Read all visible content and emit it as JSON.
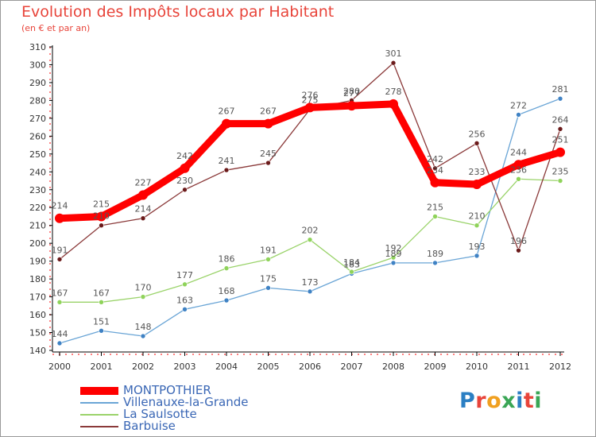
{
  "header": {
    "title": "Evolution des Impôts locaux par Habitant",
    "subtitle": "(en € et par an)"
  },
  "brand": {
    "text": "Proxiti",
    "letter_colors": [
      "#2b7fc3",
      "#e8443a",
      "#f0a020",
      "#3aa655",
      "#2b7fc3",
      "#e8443a",
      "#3aa655"
    ]
  },
  "chart_data": {
    "type": "line",
    "title": "Evolution des Impôts locaux par Habitant",
    "subtitle": "(en € et par an)",
    "xlabel": "",
    "ylabel": "",
    "ylim": [
      140,
      310
    ],
    "yticks": [
      140,
      150,
      160,
      170,
      180,
      190,
      200,
      210,
      220,
      230,
      240,
      250,
      260,
      270,
      280,
      290,
      300,
      310
    ],
    "grid": false,
    "legend_position": "bottom-left",
    "x": [
      "2000",
      "2001",
      "2002",
      "2003",
      "2004",
      "2005",
      "2006",
      "2007",
      "2008",
      "2009",
      "2010",
      "2011",
      "2012"
    ],
    "series": [
      {
        "name": "MONTPOTHIER",
        "color": "#ff0000",
        "bold": true,
        "label_color": "#555555",
        "values": [
          214,
          215,
          227,
          242,
          267,
          267,
          276,
          277,
          278,
          234,
          233,
          244,
          251
        ],
        "labels": [
          "214",
          "215",
          "227",
          "242",
          "267",
          "267",
          "276",
          "277",
          "278",
          "234",
          "233",
          "244",
          "251"
        ]
      },
      {
        "name": "Villenauxe-la-Grande",
        "color": "#6aa5d6",
        "marker": "#3f82c4",
        "label_color": "#555555",
        "values": [
          144,
          151,
          148,
          163,
          168,
          175,
          173,
          183,
          189,
          189,
          193,
          272,
          281
        ],
        "labels": [
          "144",
          "151",
          "148",
          "163",
          "168",
          "175",
          "173",
          "183",
          "189",
          "189",
          "193",
          "272",
          "281"
        ]
      },
      {
        "name": "La Saulsotte",
        "color": "#9ad36a",
        "marker": "#8fd35a",
        "label_color": "#555555",
        "values": [
          167,
          167,
          170,
          177,
          186,
          191,
          202,
          184,
          192,
          215,
          210,
          236,
          235
        ],
        "labels": [
          "167",
          "167",
          "170",
          "177",
          "186",
          "191",
          "202",
          "184",
          "192",
          "215",
          "210",
          "236",
          "235"
        ]
      },
      {
        "name": "Barbuise",
        "color": "#8b3a3a",
        "marker": "#6b1a1a",
        "label_color": "#555555",
        "values": [
          191,
          210,
          214,
          230,
          241,
          245,
          275,
          280,
          301,
          242,
          256,
          196,
          264
        ],
        "labels": [
          "191",
          "210",
          "214",
          "230",
          "241",
          "245",
          "275",
          "280",
          "301",
          "242",
          "256",
          "196",
          "264"
        ]
      }
    ]
  }
}
